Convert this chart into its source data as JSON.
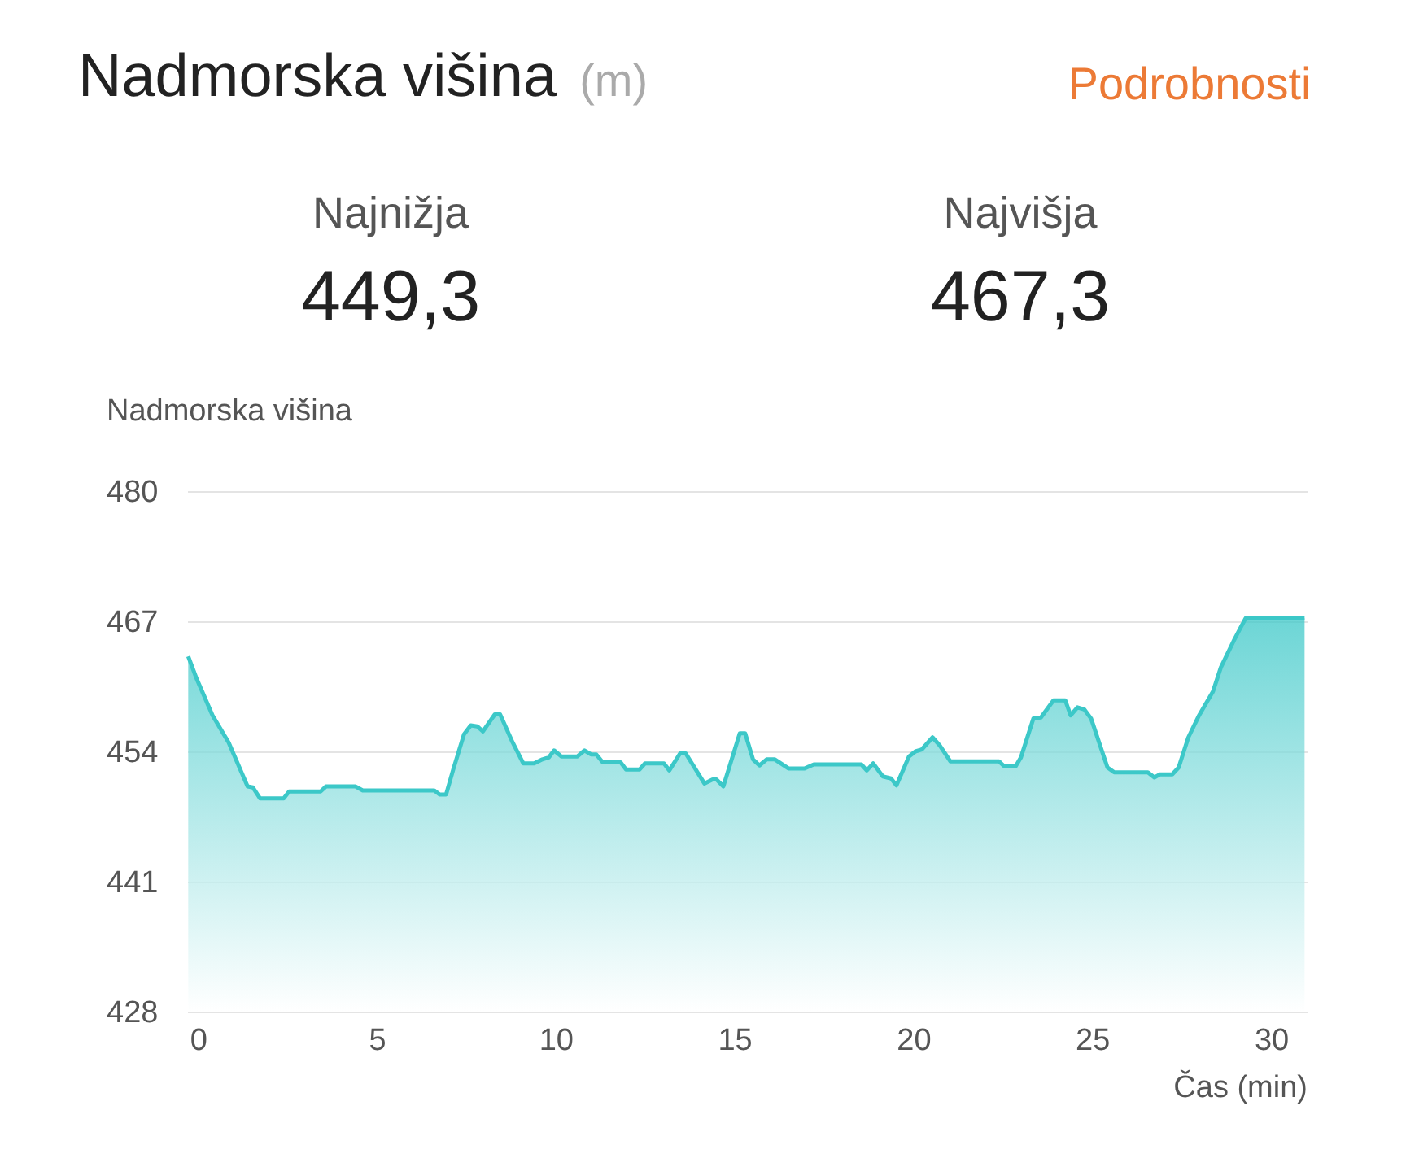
{
  "chart_data": {
    "type": "area",
    "title": "Nadmorska višina",
    "subtitle": "(m)",
    "ylabel": "Nadmorska višina",
    "xlabel": "Čas (min)",
    "annotations": [
      "Podrobnosti",
      "Najnižja",
      "449,3",
      "Najvišja",
      "467,3"
    ],
    "x": [
      -0.27,
      -0.05,
      0.41,
      0.86,
      1.39,
      1.54,
      1.74,
      2.4,
      2.55,
      3.43,
      3.58,
      4.41,
      4.61,
      6.61,
      6.76,
      6.94,
      7.14,
      7.44,
      7.63,
      7.81,
      7.97,
      8.3,
      8.45,
      8.8,
      9.1,
      9.4,
      9.63,
      9.81,
      9.96,
      10.16,
      10.61,
      10.81,
      10.99,
      11.14,
      11.32,
      11.82,
      11.97,
      12.35,
      12.5,
      13.03,
      13.18,
      13.48,
      13.64,
      14.16,
      14.39,
      14.5,
      14.69,
      15.15,
      15.3,
      15.52,
      15.7,
      15.9,
      16.13,
      16.51,
      16.96,
      17.22,
      18.55,
      18.7,
      18.88,
      19.15,
      19.38,
      19.53,
      19.88,
      20.06,
      20.24,
      20.54,
      20.74,
      21.04,
      22.4,
      22.55,
      22.86,
      23.01,
      23.36,
      23.57,
      23.92,
      24.25,
      24.4,
      24.59,
      24.78,
      24.97,
      25.43,
      25.62,
      26.56,
      26.74,
      26.89,
      27.24,
      27.42,
      27.69,
      27.99,
      28.38,
      28.6,
      28.98,
      29.29,
      30.94
    ],
    "series": [
      {
        "color": "#3cc8c8",
        "values": [
          463.5,
          461.4,
          457.6,
          454.9,
          450.5,
          450.4,
          449.3,
          449.3,
          450.0,
          450.0,
          450.5,
          450.5,
          450.1,
          450.1,
          449.7,
          449.7,
          452.2,
          455.7,
          456.6,
          456.5,
          456.0,
          457.7,
          457.7,
          454.9,
          452.8,
          452.8,
          453.2,
          453.4,
          454.1,
          453.5,
          453.5,
          454.1,
          453.7,
          453.7,
          452.9,
          452.9,
          452.2,
          452.2,
          452.8,
          452.8,
          452.1,
          453.8,
          453.8,
          450.8,
          451.2,
          451.2,
          450.5,
          455.8,
          455.8,
          453.2,
          452.6,
          453.2,
          453.2,
          452.3,
          452.3,
          452.7,
          452.7,
          452.1,
          452.8,
          451.5,
          451.3,
          450.6,
          453.5,
          454.0,
          454.2,
          455.4,
          454.6,
          453.0,
          453.0,
          452.5,
          452.5,
          453.4,
          457.3,
          457.4,
          459.1,
          459.1,
          457.6,
          458.4,
          458.2,
          457.3,
          452.4,
          451.9,
          451.9,
          451.4,
          451.7,
          451.7,
          452.4,
          455.4,
          457.6,
          460.0,
          462.4,
          465.2,
          467.3,
          467.3
        ]
      }
    ],
    "xlim": [
      -0.3,
      31
    ],
    "xticks": [
      0,
      5,
      10,
      15,
      20,
      25,
      30
    ],
    "ylim": [
      428,
      480
    ],
    "yticks": [
      428,
      441,
      454,
      467,
      480
    ],
    "grid": "y"
  }
}
